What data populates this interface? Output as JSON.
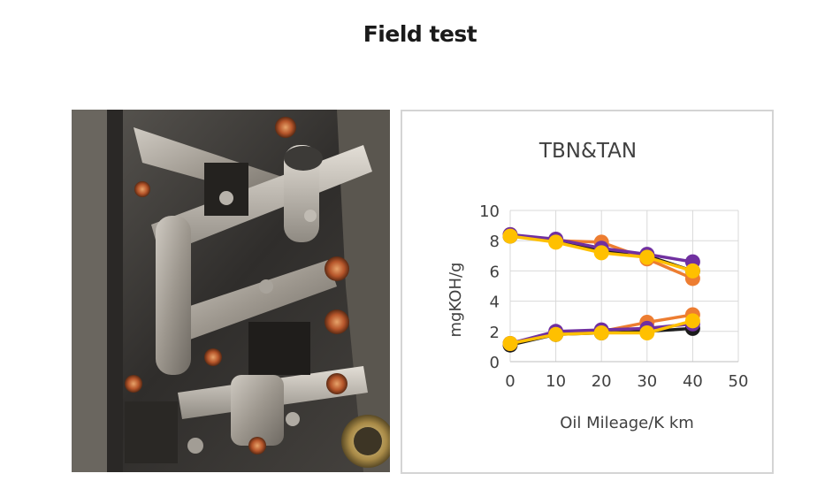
{
  "heading": "Field test",
  "photo": {
    "alt": "Engine valve train photograph"
  },
  "chart_data": {
    "type": "line",
    "title": "TBN&TAN",
    "xlabel": "Oil Mileage/K km",
    "ylabel": "mgKOH/g",
    "xlim": [
      0,
      50
    ],
    "ylim": [
      0,
      10
    ],
    "xticks": [
      0,
      10,
      20,
      30,
      40,
      50
    ],
    "yticks": [
      0,
      2,
      4,
      6,
      8,
      10
    ],
    "grid": true,
    "legend": "none",
    "x": [
      0,
      10,
      20,
      30,
      40
    ],
    "series": [
      {
        "color": "#1b1b1b",
        "values": [
          8.3,
          8.0,
          7.3,
          7.0,
          6.0
        ],
        "group": "TBN"
      },
      {
        "color": "#ed7d31",
        "values": [
          8.4,
          8.0,
          7.9,
          6.8,
          5.5
        ],
        "group": "TBN"
      },
      {
        "color": "#7030a0",
        "values": [
          8.4,
          8.1,
          7.5,
          7.1,
          6.6
        ],
        "group": "TBN"
      },
      {
        "color": "#ffc000",
        "values": [
          8.3,
          7.9,
          7.2,
          6.9,
          6.0
        ],
        "group": "TBN"
      },
      {
        "color": "#1b1b1b",
        "values": [
          1.1,
          1.8,
          1.9,
          2.0,
          2.2
        ],
        "group": "TAN"
      },
      {
        "color": "#ed7d31",
        "values": [
          1.2,
          1.9,
          2.0,
          2.6,
          3.1
        ],
        "group": "TAN"
      },
      {
        "color": "#7030a0",
        "values": [
          1.2,
          2.0,
          2.1,
          2.2,
          2.5
        ],
        "group": "TAN"
      },
      {
        "color": "#ffc000",
        "values": [
          1.2,
          1.8,
          1.9,
          1.9,
          2.7
        ],
        "group": "TAN"
      }
    ]
  }
}
